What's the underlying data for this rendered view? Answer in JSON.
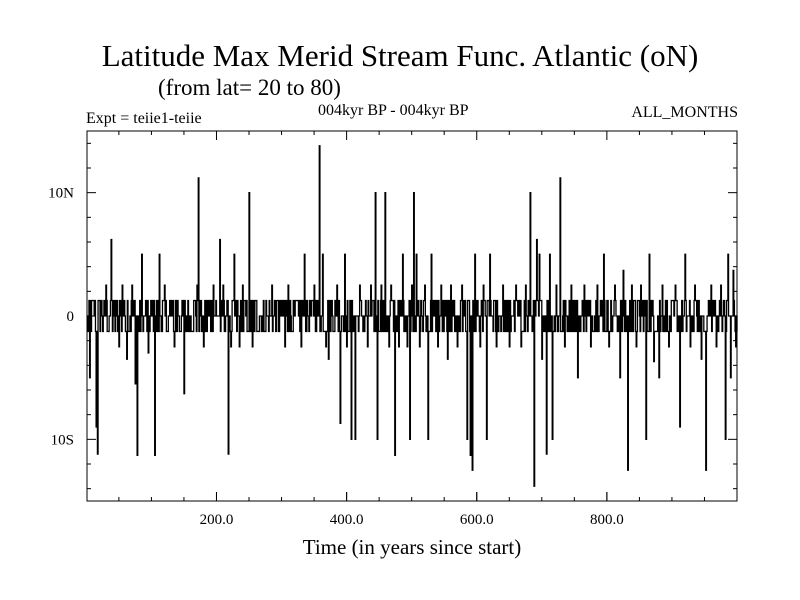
{
  "chart_data": {
    "type": "line",
    "title": "Latitude Max Merid Stream Func. Atlantic (oN)",
    "subtitle": "(from lat= 20 to 80)",
    "experiment": "Expt = teiie1-teiie",
    "period": "004kyr BP - 004kyr BP",
    "months": "ALL_MONTHS",
    "xlabel": "Time (in years since start)",
    "ylabel": "",
    "xlim": [
      1,
      1000
    ],
    "ylim": [
      -15,
      15
    ],
    "x_ticks": [
      {
        "value": 200,
        "label": "200.0"
      },
      {
        "value": 400,
        "label": "400.0"
      },
      {
        "value": 600,
        "label": "600.0"
      },
      {
        "value": 800,
        "label": "800.0"
      }
    ],
    "y_ticks": [
      {
        "value": 10,
        "label": "10N"
      },
      {
        "value": 0,
        "label": "0"
      },
      {
        "value": -10,
        "label": "10S"
      }
    ],
    "grid": false,
    "baseline_values": [
      -1.25,
      0,
      1.25
    ],
    "excursions": [
      {
        "x": 5,
        "y": -5
      },
      {
        "x": 15,
        "y": -9
      },
      {
        "x": 17,
        "y": -11.2
      },
      {
        "x": 30,
        "y": 2.5
      },
      {
        "x": 38,
        "y": 6.2
      },
      {
        "x": 50,
        "y": -2.5
      },
      {
        "x": 55,
        "y": 2.5
      },
      {
        "x": 62,
        "y": -3.5
      },
      {
        "x": 70,
        "y": 2.5
      },
      {
        "x": 75,
        "y": -5.5
      },
      {
        "x": 78,
        "y": -11.3
      },
      {
        "x": 85,
        "y": 5
      },
      {
        "x": 95,
        "y": -3
      },
      {
        "x": 105,
        "y": -11.3
      },
      {
        "x": 112,
        "y": 5
      },
      {
        "x": 120,
        "y": 2.5
      },
      {
        "x": 135,
        "y": -2.5
      },
      {
        "x": 150,
        "y": -6.3
      },
      {
        "x": 170,
        "y": 2.5
      },
      {
        "x": 172,
        "y": 11.2
      },
      {
        "x": 180,
        "y": -2.5
      },
      {
        "x": 195,
        "y": 2.5
      },
      {
        "x": 205,
        "y": 6.2
      },
      {
        "x": 210,
        "y": 2.5
      },
      {
        "x": 218,
        "y": -11.2
      },
      {
        "x": 222,
        "y": -2.5
      },
      {
        "x": 227,
        "y": 5
      },
      {
        "x": 235,
        "y": -2.5
      },
      {
        "x": 240,
        "y": 2.5
      },
      {
        "x": 250,
        "y": 10
      },
      {
        "x": 255,
        "y": -2.5
      },
      {
        "x": 285,
        "y": 2.5
      },
      {
        "x": 305,
        "y": -2.5
      },
      {
        "x": 310,
        "y": 2.5
      },
      {
        "x": 330,
        "y": -2.5
      },
      {
        "x": 335,
        "y": 5
      },
      {
        "x": 350,
        "y": 2.5
      },
      {
        "x": 358,
        "y": 13.8
      },
      {
        "x": 363,
        "y": 5
      },
      {
        "x": 368,
        "y": -2.5
      },
      {
        "x": 372,
        "y": -3.5
      },
      {
        "x": 385,
        "y": 2.5
      },
      {
        "x": 390,
        "y": -8.7
      },
      {
        "x": 397,
        "y": 5
      },
      {
        "x": 400,
        "y": -2.5
      },
      {
        "x": 407,
        "y": -10
      },
      {
        "x": 413,
        "y": -10
      },
      {
        "x": 420,
        "y": 2.5
      },
      {
        "x": 432,
        "y": -2.5
      },
      {
        "x": 437,
        "y": 2.5
      },
      {
        "x": 444,
        "y": 10
      },
      {
        "x": 447,
        "y": -10
      },
      {
        "x": 453,
        "y": 2.5
      },
      {
        "x": 459,
        "y": 10
      },
      {
        "x": 465,
        "y": -2.5
      },
      {
        "x": 468,
        "y": 2.5
      },
      {
        "x": 474,
        "y": -11.3
      },
      {
        "x": 480,
        "y": -2.5
      },
      {
        "x": 486,
        "y": 5
      },
      {
        "x": 493,
        "y": -2.5
      },
      {
        "x": 497,
        "y": -10
      },
      {
        "x": 500,
        "y": 2.5
      },
      {
        "x": 503,
        "y": 10
      },
      {
        "x": 507,
        "y": 5
      },
      {
        "x": 512,
        "y": -2.5
      },
      {
        "x": 520,
        "y": 2.5
      },
      {
        "x": 525,
        "y": -10
      },
      {
        "x": 530,
        "y": 5
      },
      {
        "x": 540,
        "y": -2.5
      },
      {
        "x": 545,
        "y": 2.5
      },
      {
        "x": 555,
        "y": -3.5
      },
      {
        "x": 560,
        "y": 2.5
      },
      {
        "x": 570,
        "y": -2.5
      },
      {
        "x": 577,
        "y": 2.5
      },
      {
        "x": 585,
        "y": -10
      },
      {
        "x": 590,
        "y": -11.3
      },
      {
        "x": 593,
        "y": -12.5
      },
      {
        "x": 597,
        "y": 5
      },
      {
        "x": 605,
        "y": -2.5
      },
      {
        "x": 610,
        "y": 2.5
      },
      {
        "x": 615,
        "y": -10
      },
      {
        "x": 620,
        "y": 5
      },
      {
        "x": 630,
        "y": -2.5
      },
      {
        "x": 640,
        "y": 2.5
      },
      {
        "x": 650,
        "y": -2.5
      },
      {
        "x": 660,
        "y": 2.5
      },
      {
        "x": 668,
        "y": -2.5
      },
      {
        "x": 675,
        "y": 2.5
      },
      {
        "x": 682,
        "y": 10
      },
      {
        "x": 688,
        "y": -13.8
      },
      {
        "x": 692,
        "y": 6.2
      },
      {
        "x": 696,
        "y": 5
      },
      {
        "x": 700,
        "y": -3.5
      },
      {
        "x": 707,
        "y": -11.2
      },
      {
        "x": 712,
        "y": 5
      },
      {
        "x": 716,
        "y": -10
      },
      {
        "x": 722,
        "y": 2.5
      },
      {
        "x": 728,
        "y": 11.2
      },
      {
        "x": 735,
        "y": -2.5
      },
      {
        "x": 745,
        "y": 2.5
      },
      {
        "x": 755,
        "y": -5
      },
      {
        "x": 765,
        "y": 2.5
      },
      {
        "x": 775,
        "y": -2.5
      },
      {
        "x": 785,
        "y": 2.5
      },
      {
        "x": 795,
        "y": 5
      },
      {
        "x": 803,
        "y": -2.5
      },
      {
        "x": 812,
        "y": 2.5
      },
      {
        "x": 820,
        "y": -5
      },
      {
        "x": 825,
        "y": 3.7
      },
      {
        "x": 832,
        "y": -12.5
      },
      {
        "x": 838,
        "y": 2.5
      },
      {
        "x": 845,
        "y": -2.5
      },
      {
        "x": 852,
        "y": 2.5
      },
      {
        "x": 860,
        "y": -10
      },
      {
        "x": 865,
        "y": 5
      },
      {
        "x": 872,
        "y": -3.7
      },
      {
        "x": 880,
        "y": -5
      },
      {
        "x": 885,
        "y": 2.5
      },
      {
        "x": 895,
        "y": -2.5
      },
      {
        "x": 905,
        "y": 2.5
      },
      {
        "x": 912,
        "y": -9
      },
      {
        "x": 920,
        "y": 5
      },
      {
        "x": 928,
        "y": -2.5
      },
      {
        "x": 935,
        "y": 2.5
      },
      {
        "x": 945,
        "y": -3.5
      },
      {
        "x": 952,
        "y": -12.5
      },
      {
        "x": 960,
        "y": 2.5
      },
      {
        "x": 968,
        "y": -2.5
      },
      {
        "x": 975,
        "y": 2.5
      },
      {
        "x": 982,
        "y": -10
      },
      {
        "x": 986,
        "y": 5
      },
      {
        "x": 990,
        "y": -5
      },
      {
        "x": 994,
        "y": 3.7
      },
      {
        "x": 998,
        "y": -2.5
      }
    ]
  }
}
